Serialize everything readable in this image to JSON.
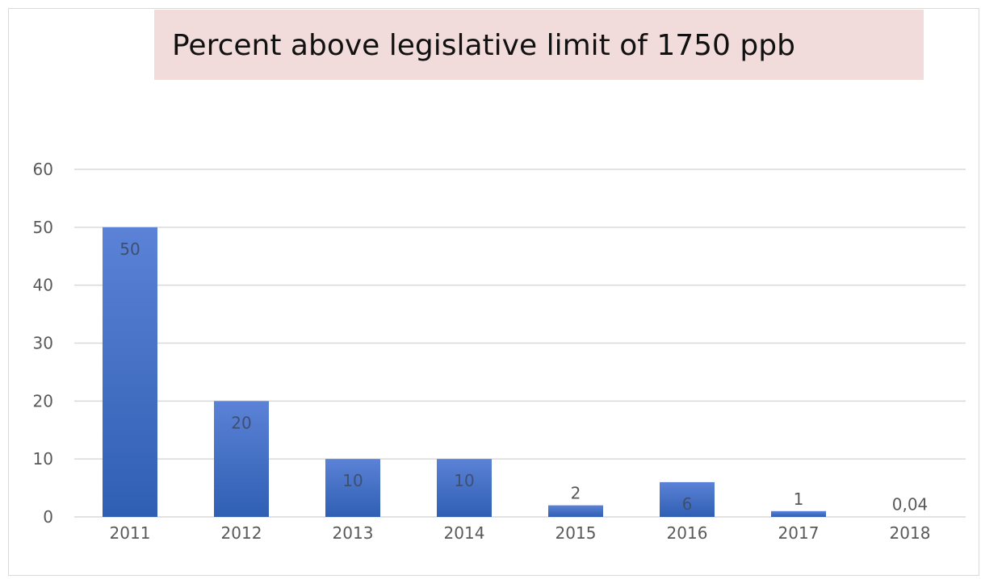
{
  "chart_data": {
    "type": "bar",
    "title": "Percent above legislative limit of 1750 ppb",
    "xlabel": "",
    "ylabel": "",
    "categories": [
      "2011",
      "2012",
      "2013",
      "2014",
      "2015",
      "2016",
      "2017",
      "2018"
    ],
    "values": [
      50,
      20,
      10,
      10,
      2,
      6,
      1,
      0.04
    ],
    "data_labels": [
      "50",
      "20",
      "10",
      "10",
      "2",
      "6",
      "1",
      "0,04"
    ],
    "ylim": [
      0,
      60
    ],
    "yticks": [
      "0",
      "10",
      "20",
      "30",
      "40",
      "50",
      "60"
    ],
    "grid": true,
    "legend": "none",
    "colors": {
      "bar_top": "#5b82d6",
      "bar_bottom": "#2f5fb3",
      "title_background": "#f2dcdb",
      "gridline": "#d9d9d9",
      "label_inside": "#3e4f72",
      "label_outside": "#595959"
    }
  }
}
